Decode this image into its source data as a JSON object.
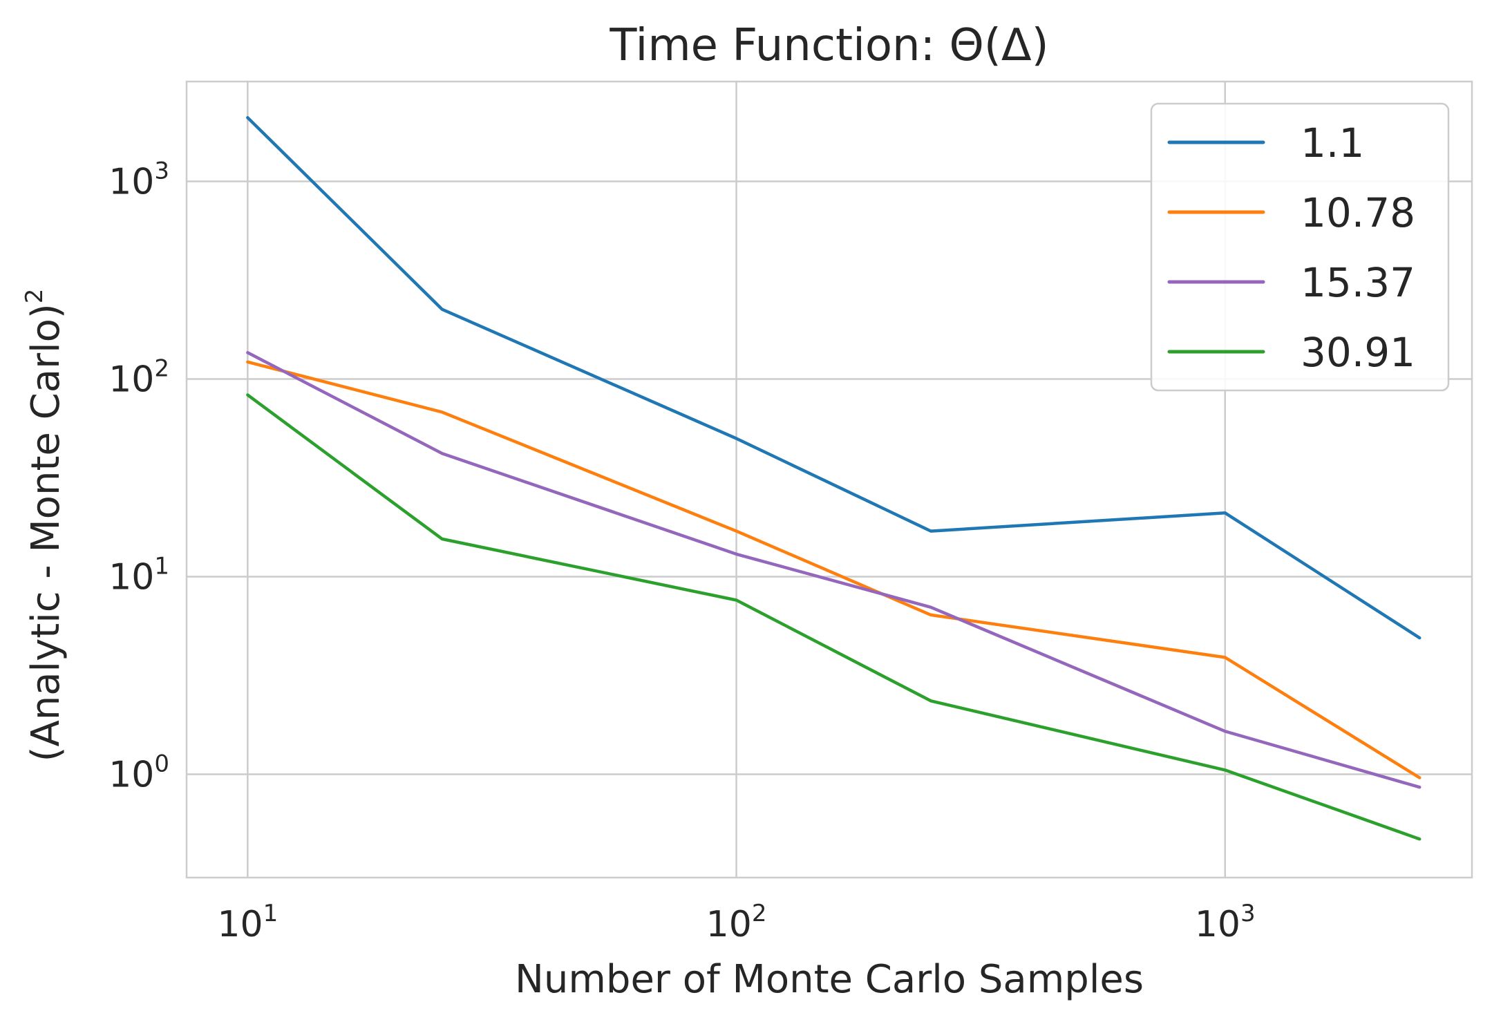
{
  "chart_data": {
    "type": "line",
    "title": "Time Function: Θ(Δ)",
    "xlabel": "Number of Monte Carlo Samples",
    "ylabel": "(Analytic - Monte Carlo)",
    "ylabel_superscript": "2",
    "x_scale": "log",
    "y_scale": "log",
    "xlim": [
      7.5,
      3200
    ],
    "ylim": [
      0.3,
      3200
    ],
    "grid": true,
    "legend_position": "top-right",
    "x": [
      10,
      25,
      100,
      250,
      1000,
      2500
    ],
    "x_ticks": [
      {
        "value": 10,
        "base": "10",
        "exp": "1"
      },
      {
        "value": 100,
        "base": "10",
        "exp": "2"
      },
      {
        "value": 1000,
        "base": "10",
        "exp": "3"
      }
    ],
    "y_ticks": [
      {
        "value": 1,
        "base": "10",
        "exp": "0"
      },
      {
        "value": 10,
        "base": "10",
        "exp": "1"
      },
      {
        "value": 100,
        "base": "10",
        "exp": "2"
      },
      {
        "value": 1000,
        "base": "10",
        "exp": "3"
      }
    ],
    "series": [
      {
        "name": "1.1",
        "color": "#1f77b4",
        "values": [
          2100,
          225,
          50,
          17,
          21,
          4.9
        ]
      },
      {
        "name": "10.78",
        "color": "#ff7f0e",
        "values": [
          122,
          68,
          17,
          6.4,
          3.9,
          0.96
        ]
      },
      {
        "name": "15.37",
        "color": "#9467bd",
        "values": [
          136,
          42,
          13,
          7,
          1.65,
          0.86
        ]
      },
      {
        "name": "30.91",
        "color": "#2ca02c",
        "values": [
          83,
          15.5,
          7.6,
          2.35,
          1.05,
          0.47
        ]
      }
    ]
  }
}
